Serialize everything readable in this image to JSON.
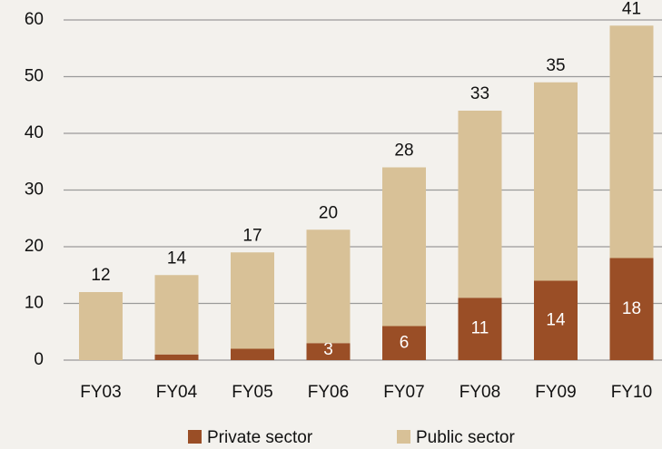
{
  "chart_data": {
    "type": "stacked_bar",
    "categories": [
      "FY03",
      "FY04",
      "FY05",
      "FY06",
      "FY07",
      "FY08",
      "FY09",
      "FY10"
    ],
    "series": [
      {
        "name": "Private sector",
        "color": "#9a4e26",
        "values": [
          0,
          1,
          2,
          3,
          6,
          11,
          14,
          18
        ]
      },
      {
        "name": "Public sector",
        "color": "#d8c197",
        "values": [
          12,
          14,
          17,
          20,
          28,
          33,
          35,
          41
        ]
      }
    ],
    "ylim": [
      0,
      60
    ],
    "yticks": [
      0,
      10,
      20,
      30,
      40,
      50,
      60
    ],
    "grid": true,
    "legend": "bottom"
  }
}
